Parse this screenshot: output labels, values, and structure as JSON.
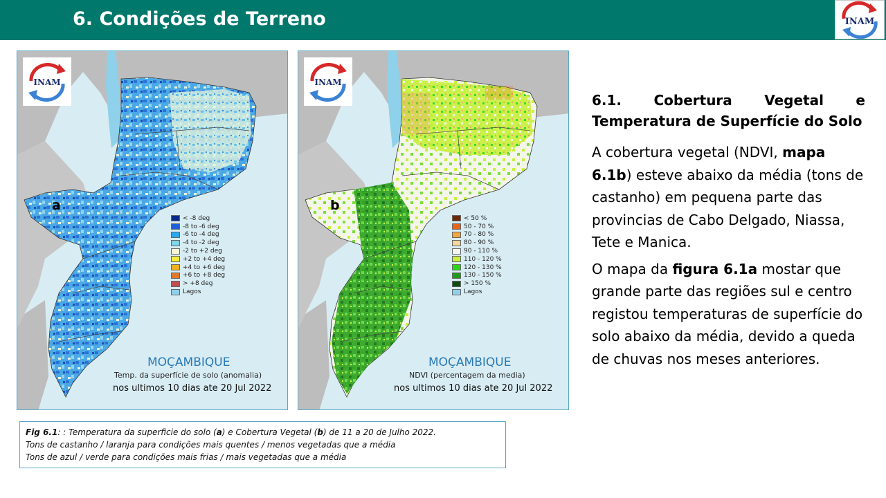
{
  "header": {
    "title": "6. Condições de Terreno",
    "logo_text": "INAM"
  },
  "panel_a": {
    "logo_text": "INAM",
    "letter": "a",
    "country": "MOÇAMBIQUE",
    "subtitle1": "Temp. da superfície de solo (anomalia)",
    "subtitle2": "nos ultimos 10 dias ate 20 Jul 2022",
    "legend": [
      {
        "label": "< -8 deg",
        "color": "#0a2a8a"
      },
      {
        "label": "-8 to -6 deg",
        "color": "#1f5fd8"
      },
      {
        "label": "-6 to -4 deg",
        "color": "#29a9ef"
      },
      {
        "label": "-4 to -2 deg",
        "color": "#7fd6ea"
      },
      {
        "label": "-2 to +2 deg",
        "color": "#f7f7d4"
      },
      {
        "label": "+2 to +4 deg",
        "color": "#f5ee3a"
      },
      {
        "label": "+4 to +6 deg",
        "color": "#f2b21e"
      },
      {
        "label": "+6 to +8 deg",
        "color": "#e0782a"
      },
      {
        "label": "> +8 deg",
        "color": "#c0504d"
      },
      {
        "label": "Lagos",
        "color": "#8fd1ea"
      }
    ]
  },
  "panel_b": {
    "logo_text": "INAM",
    "letter": "b",
    "country": "MOÇAMBIQUE",
    "subtitle1": "NDVI (percentagem da media)",
    "subtitle2": "nos ultimos 10 dias ate 20 Jul 2022",
    "legend": [
      {
        "label": "< 50 %",
        "color": "#6b2a0a"
      },
      {
        "label": "50 - 70 %",
        "color": "#e8641a"
      },
      {
        "label": "70 - 80 %",
        "color": "#f2a640"
      },
      {
        "label": "80 - 90 %",
        "color": "#f3d89a"
      },
      {
        "label": "90 - 110 %",
        "color": "#f4f4ee"
      },
      {
        "label": "110 - 120 %",
        "color": "#c8f03c"
      },
      {
        "label": "120 - 130 %",
        "color": "#29d61a"
      },
      {
        "label": "130 - 150 %",
        "color": "#1f9a1a"
      },
      {
        "label": "> 150 %",
        "color": "#0d4d0d"
      },
      {
        "label": "Lagos",
        "color": "#8fd1ea"
      }
    ]
  },
  "caption": {
    "line1_prefix": "Fig 6.1",
    "line1_a": ": : Temperatura da superficie do solo (",
    "line1_b": "a",
    "line1_c": ") e Cobertura  Vegetal (",
    "line1_d": "b",
    "line1_e": ") de 11 a 20 de Julho 2022.",
    "line2": "Tons de castanho / laranja para condições mais quentes / menos vegetadas que a média",
    "line3": "Tons de azul  / verde para condições mais frias / mais vegetadas que a média"
  },
  "right": {
    "heading_w1": "6.1.",
    "heading_w2": "Cobertura",
    "heading_w3": "Vegetal",
    "heading_w4": "e",
    "heading_line2": "Temperatura de Superfície do Solo",
    "p1_a": "A cobertura vegetal (NDVI, ",
    "p1_b": "mapa 6.1b",
    "p1_c": ") esteve abaixo da média (tons de castanho)  em pequena parte das provincias de Cabo Delgado, Niassa, Tete e Manica.",
    "p2_a": "O mapa da ",
    "p2_b": "figura 6.1a",
    "p2_c": " mostar que grande parte das regiões sul e centro registou temperaturas de superfície do solo abaixo da média, devido a queda de chuvas nos meses anteriores."
  }
}
